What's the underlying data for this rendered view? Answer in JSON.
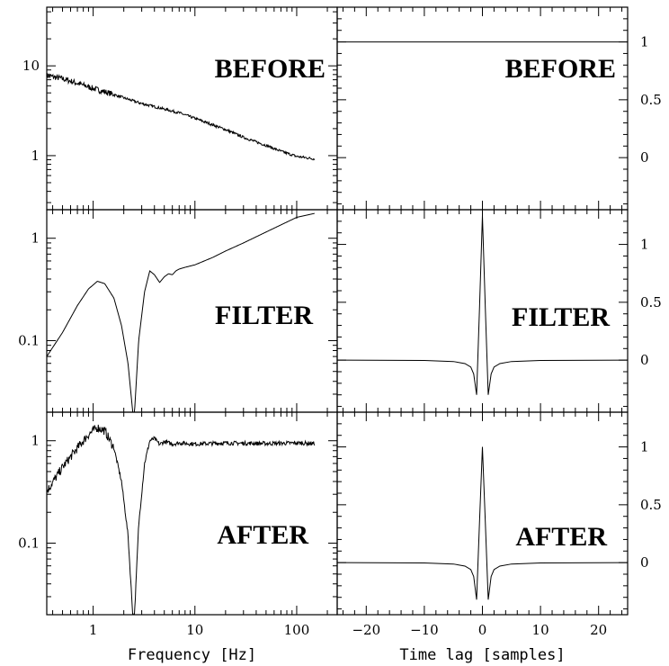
{
  "chart_data": [
    {
      "type": "line",
      "panel": "left-top",
      "title": "BEFORE",
      "xscale": "log",
      "yscale": "log",
      "xlim": [
        0.35,
        250
      ],
      "ylim": [
        0.25,
        45
      ],
      "xlabel": "",
      "ylabel": "",
      "xticks": [],
      "yticks": [
        1,
        10
      ],
      "ytick_labels": [
        "1",
        "10"
      ],
      "x": [
        0.35,
        0.5,
        0.7,
        1,
        1.5,
        2,
        3,
        5,
        7,
        10,
        15,
        20,
        30,
        40,
        50,
        70,
        100,
        150
      ],
      "y": [
        7.8,
        7.2,
        6.4,
        5.6,
        4.9,
        4.4,
        3.8,
        3.3,
        3.0,
        2.6,
        2.2,
        1.95,
        1.6,
        1.42,
        1.3,
        1.12,
        0.98,
        0.92
      ],
      "noise": 0.03
    },
    {
      "type": "line",
      "panel": "right-top",
      "title": "BEFORE",
      "xscale": "linear",
      "yscale": "linear",
      "xlim": [
        -25,
        25
      ],
      "ylim": [
        -0.45,
        1.3
      ],
      "xlabel": "",
      "ylabel": "",
      "xticks": [],
      "yticks": [
        0,
        0.5,
        1
      ],
      "ytick_labels": [
        "0",
        "0.5",
        "1"
      ],
      "x": [
        -25,
        25
      ],
      "y": [
        1,
        1
      ]
    },
    {
      "type": "line",
      "panel": "left-mid",
      "title": "FILTER",
      "xscale": "log",
      "yscale": "log",
      "xlim": [
        0.35,
        250
      ],
      "ylim": [
        0.02,
        1.9
      ],
      "xlabel": "",
      "ylabel": "",
      "xticks": [],
      "yticks": [
        0.1,
        1
      ],
      "ytick_labels": [
        "0.1",
        "1"
      ],
      "x": [
        0.35,
        0.5,
        0.7,
        0.9,
        1.1,
        1.3,
        1.6,
        1.9,
        2.2,
        2.45,
        2.5,
        2.55,
        2.8,
        3.2,
        3.6,
        4.0,
        4.5,
        5.0,
        5.5,
        6.0,
        6.5,
        7.0,
        8.0,
        10,
        15,
        20,
        30,
        50,
        70,
        100,
        150
      ],
      "y": [
        0.07,
        0.12,
        0.22,
        0.32,
        0.38,
        0.36,
        0.26,
        0.14,
        0.06,
        0.02,
        0.02,
        0.02,
        0.1,
        0.3,
        0.48,
        0.44,
        0.37,
        0.42,
        0.45,
        0.44,
        0.48,
        0.5,
        0.52,
        0.55,
        0.65,
        0.75,
        0.9,
        1.15,
        1.35,
        1.6,
        1.75
      ]
    },
    {
      "type": "line",
      "panel": "right-mid",
      "title": "FILTER",
      "xscale": "linear",
      "yscale": "linear",
      "xlim": [
        -25,
        25
      ],
      "ylim": [
        -0.45,
        1.3
      ],
      "xlabel": "",
      "ylabel": "",
      "xticks": [],
      "yticks": [
        0,
        0.5,
        1
      ],
      "ytick_labels": [
        "0",
        "0.5",
        "1"
      ],
      "x": [
        -25,
        -10,
        -5,
        -3,
        -2,
        -1.5,
        -1,
        -0.5,
        0,
        0.5,
        1,
        1.5,
        2,
        3,
        5,
        10,
        25
      ],
      "y": [
        0,
        -0.003,
        -0.012,
        -0.03,
        -0.06,
        -0.12,
        -0.3,
        0.45,
        1.25,
        0.45,
        -0.3,
        -0.12,
        -0.06,
        -0.03,
        -0.012,
        -0.003,
        0
      ]
    },
    {
      "type": "line",
      "panel": "left-bot",
      "title": "AFTER",
      "xscale": "log",
      "yscale": "log",
      "xlim": [
        0.35,
        250
      ],
      "ylim": [
        0.02,
        1.9
      ],
      "xlabel": "Frequency [Hz]",
      "ylabel": "",
      "xticks": [
        1,
        10,
        100
      ],
      "xtick_labels": [
        "1",
        "10",
        "100"
      ],
      "yticks": [
        0.1,
        1
      ],
      "ytick_labels": [
        "0.1",
        "1"
      ],
      "x": [
        0.35,
        0.5,
        0.7,
        0.9,
        1.1,
        1.3,
        1.6,
        1.9,
        2.2,
        2.45,
        2.5,
        2.55,
        2.8,
        3.2,
        3.6,
        4.0,
        4.5,
        5.0,
        6.0,
        7.0,
        10,
        20,
        50,
        100,
        150
      ],
      "y": [
        0.32,
        0.55,
        0.85,
        1.15,
        1.35,
        1.25,
        0.85,
        0.4,
        0.12,
        0.02,
        0.02,
        0.02,
        0.15,
        0.6,
        1.0,
        1.05,
        0.92,
        0.98,
        0.93,
        0.95,
        0.93,
        0.95,
        0.94,
        0.95,
        0.94
      ],
      "noise": 0.04
    },
    {
      "type": "line",
      "panel": "right-bot",
      "title": "AFTER",
      "xscale": "linear",
      "yscale": "linear",
      "xlim": [
        -25,
        25
      ],
      "ylim": [
        -0.45,
        1.3
      ],
      "xlabel": "Time lag [samples]",
      "ylabel": "",
      "xticks": [
        -20,
        -10,
        0,
        10,
        20
      ],
      "xtick_labels": [
        "−20",
        "−10",
        "0",
        "10",
        "20"
      ],
      "yticks": [
        0,
        0.5,
        1
      ],
      "ytick_labels": [
        "0",
        "0.5",
        "1"
      ],
      "x": [
        -25,
        -10,
        -5,
        -3,
        -2,
        -1.5,
        -1,
        -0.5,
        0,
        0.5,
        1,
        1.5,
        2,
        3,
        5,
        10,
        25
      ],
      "y": [
        0,
        -0.003,
        -0.012,
        -0.03,
        -0.06,
        -0.12,
        -0.32,
        0.35,
        1.0,
        0.35,
        -0.32,
        -0.12,
        -0.06,
        -0.03,
        -0.012,
        -0.003,
        0
      ]
    }
  ]
}
